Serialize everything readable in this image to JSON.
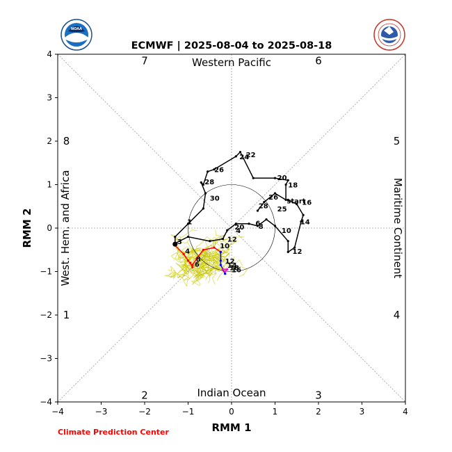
{
  "credit": "Climate Prediction Center",
  "chart_data": {
    "type": "line",
    "title": "ECMWF | 2025-08-04 to 2025-08-18",
    "xlabel": "RMM 1",
    "ylabel": "RMM 2",
    "xlim": [
      -4,
      4
    ],
    "ylim": [
      -4,
      4
    ],
    "ticks": [
      "−4",
      "−3",
      "−2",
      "−1",
      "0",
      "1",
      "2",
      "3",
      "4"
    ],
    "region_labels": {
      "top": "Western Pacific",
      "bottom": "Indian Ocean",
      "left": "West. Hem. and Africa",
      "right": "Maritime Continent"
    },
    "phase_labels": [
      {
        "text": "7",
        "x": -2.0,
        "y": 3.85
      },
      {
        "text": "6",
        "x": 2.0,
        "y": 3.85
      },
      {
        "text": "8",
        "x": -3.8,
        "y": 2.0
      },
      {
        "text": "5",
        "x": 3.8,
        "y": 2.0
      },
      {
        "text": "1",
        "x": -3.8,
        "y": -2.0
      },
      {
        "text": "4",
        "x": 3.8,
        "y": -2.0
      },
      {
        "text": "2",
        "x": -2.0,
        "y": -3.85
      },
      {
        "text": "3",
        "x": 2.0,
        "y": -3.85
      }
    ],
    "series": [
      {
        "color": "#000000",
        "points": [
          [
            0.6,
            0.4
          ],
          [
            0.75,
            0.6
          ],
          [
            1.0,
            0.8
          ],
          [
            1.25,
            0.65
          ],
          [
            1.25,
            1.0
          ],
          [
            1.3,
            1.1
          ],
          [
            1.0,
            1.15
          ],
          [
            0.5,
            1.15
          ],
          [
            0.2,
            1.75
          ],
          [
            0.1,
            1.65
          ],
          [
            -0.4,
            1.35
          ],
          [
            -0.55,
            1.3
          ],
          [
            -0.65,
            1.0
          ],
          [
            -0.7,
            1.05
          ],
          [
            -0.6,
            0.8
          ],
          [
            -0.65,
            0.45
          ],
          [
            -1.0,
            0.1
          ],
          [
            -1.3,
            -0.2
          ],
          [
            -1.3,
            -0.35
          ],
          [
            -1.0,
            -0.2
          ],
          [
            -0.5,
            -0.3
          ],
          [
            -0.2,
            -0.25
          ],
          [
            -0.1,
            -0.05
          ],
          [
            0.1,
            0.1
          ],
          [
            0.4,
            0.1
          ],
          [
            0.6,
            0.05
          ],
          [
            0.8,
            0.2
          ],
          [
            1.0,
            0.05
          ],
          [
            1.3,
            -0.3
          ],
          [
            1.3,
            -0.55
          ],
          [
            1.45,
            -0.45
          ],
          [
            1.6,
            0.15
          ],
          [
            1.65,
            0.3
          ],
          [
            1.5,
            0.55
          ],
          [
            1.3,
            0.65
          ]
        ]
      },
      {
        "color": "#ff0000",
        "points": [
          [
            -1.3,
            -0.4
          ],
          [
            -1.1,
            -0.6
          ],
          [
            -1.0,
            -0.75
          ],
          [
            -0.95,
            -0.8
          ],
          [
            -0.9,
            -0.9
          ]
        ]
      },
      {
        "color": "#ff0000",
        "points": [
          [
            -0.9,
            -0.85
          ],
          [
            -0.8,
            -0.7
          ],
          [
            -0.65,
            -0.5
          ],
          [
            -0.4,
            -0.45
          ],
          [
            -0.25,
            -0.55
          ]
        ]
      },
      {
        "color": "#0000ff",
        "points": [
          [
            -0.25,
            -0.55
          ],
          [
            -0.25,
            -0.75
          ],
          [
            -0.25,
            -0.85
          ],
          [
            -0.2,
            -0.95
          ],
          [
            -0.15,
            -1.05
          ]
        ]
      },
      {
        "color": "#ff00ff",
        "points": [
          [
            -0.15,
            -1.0
          ],
          [
            -0.1,
            -0.95
          ],
          [
            -0.2,
            -0.95
          ]
        ]
      }
    ],
    "annotations": [
      {
        "text": "start",
        "x": 1.27,
        "y": 0.63
      },
      {
        "text": "16",
        "x": 1.62,
        "y": 0.6
      },
      {
        "text": "14",
        "x": 1.58,
        "y": 0.15
      },
      {
        "text": "12",
        "x": 1.4,
        "y": -0.53
      },
      {
        "text": "10",
        "x": 1.15,
        "y": -0.05
      },
      {
        "text": "18",
        "x": 1.3,
        "y": 1.0
      },
      {
        "text": "20",
        "x": 1.05,
        "y": 1.17
      },
      {
        "text": "22",
        "x": 0.33,
        "y": 1.7
      },
      {
        "text": "24",
        "x": 0.18,
        "y": 1.65
      },
      {
        "text": "26",
        "x": -0.4,
        "y": 1.35
      },
      {
        "text": "28",
        "x": -0.62,
        "y": 1.07
      },
      {
        "text": "30",
        "x": -0.5,
        "y": 0.7
      },
      {
        "text": "1",
        "x": -1.02,
        "y": 0.15
      },
      {
        "text": "3",
        "x": -1.25,
        "y": -0.3
      },
      {
        "text": "4",
        "x": -1.07,
        "y": -0.52
      },
      {
        "text": "6",
        "x": -0.85,
        "y": -0.82
      },
      {
        "text": "8",
        "x": -0.82,
        "y": -0.7
      },
      {
        "text": "10",
        "x": -0.27,
        "y": -0.4
      },
      {
        "text": "12",
        "x": -0.1,
        "y": -0.25
      },
      {
        "text": "12",
        "x": -0.15,
        "y": -0.75
      },
      {
        "text": "14",
        "x": -0.1,
        "y": -0.85
      },
      {
        "text": "16",
        "x": 0.0,
        "y": -0.95
      },
      {
        "text": "18",
        "x": -0.05,
        "y": -0.9
      },
      {
        "text": "20",
        "x": 0.07,
        "y": 0.03
      },
      {
        "text": "4",
        "x": 0.1,
        "y": -0.05
      },
      {
        "text": "6",
        "x": 0.55,
        "y": 0.12
      },
      {
        "text": "8",
        "x": 0.62,
        "y": 0.05
      },
      {
        "text": "25",
        "x": 1.05,
        "y": 0.45
      },
      {
        "text": "26",
        "x": 0.85,
        "y": 0.72
      },
      {
        "text": "28",
        "x": 0.62,
        "y": 0.52
      }
    ],
    "grid": "dashed",
    "ensemble_color": "#c8c800"
  }
}
